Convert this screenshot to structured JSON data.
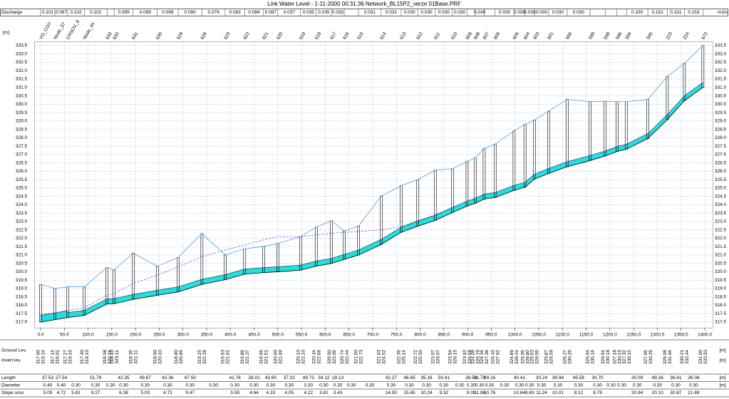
{
  "chart_data": {
    "type": "profile",
    "title": "Link Water Level - 1-11-2000 00:31:36 Network_BL15P2_verze 01Base.PRF",
    "y_label": "[m]",
    "x": [
      0,
      30,
      57,
      92,
      140,
      155,
      195,
      246,
      290,
      340,
      389,
      430,
      470,
      500,
      548,
      581,
      613,
      640,
      670,
      718,
      760,
      795,
      832,
      868,
      899,
      916,
      935,
      958,
      998,
      1021,
      1041,
      1071,
      1110,
      1158,
      1190,
      1215,
      1235,
      1280,
      1321,
      1357,
      1396
    ],
    "node_labels": [
      "VO_COV",
      "Node_37",
      "CRSOV_8",
      "Node_44",
      "633",
      "632",
      "631",
      "630",
      "629",
      "628",
      "623",
      "622",
      "621",
      "620",
      "619",
      "618",
      "617",
      "616",
      "615",
      "614",
      "613",
      "612",
      "611",
      "610",
      "609",
      "608",
      "607",
      "606",
      "605",
      "604",
      "603",
      "601",
      "600",
      "599",
      "598",
      "596",
      "594",
      "595",
      "223",
      "224",
      "672"
    ],
    "series": [
      {
        "name": "Ground Lev.",
        "unit": "[m]",
        "color": "#4a9fe0",
        "values": [
          319.24,
          319.01,
          319.1,
          319.1,
          320.26,
          320.11,
          321.11,
          320.33,
          320.85,
          322.28,
          321.01,
          321.37,
          321.51,
          321.69,
          322.1,
          322.66,
          323.05,
          322.44,
          322.73,
          324.52,
          325.14,
          325.5,
          326.07,
          326.15,
          326.58,
          326.79,
          327.36,
          327.62,
          328.41,
          328.8,
          329.05,
          329.59,
          330.29,
          330.16,
          330.18,
          330.15,
          330.15,
          330.29,
          331.66,
          332.44,
          333.5
        ],
        "value_labels": [
          "319.24",
          "319.01",
          "319.10",
          "319.10",
          "320.26",
          "320.11",
          "321.11",
          "320.33",
          "320.85",
          "322.28",
          "321.01",
          "321.37",
          "321.51",
          "321.69",
          "322.10",
          "322.66",
          "323.05",
          "322.44",
          "322.73",
          "324.52",
          "325.14",
          "325.50",
          "326.07",
          "326.15",
          "326.58",
          "326.79",
          "327.36",
          "327.62",
          "328.41",
          "328.80",
          "329.05",
          "329.59",
          "330.29",
          "330.16",
          "330.18",
          "330.15",
          "330.15",
          "330.29",
          "331.66",
          "332.44",
          "333.50"
        ]
      },
      {
        "name": "Invert lev.",
        "unit": "[m]",
        "color": "#000000",
        "values": [
          317.0,
          317.14,
          317.27,
          317.4,
          318.08,
          318.1,
          318.35,
          318.6,
          318.8,
          319.25,
          319.53,
          319.86,
          319.95,
          320.0,
          320.1,
          320.34,
          320.5,
          320.74,
          321.0,
          321.63,
          322.36,
          322.72,
          323.07,
          323.54,
          323.92,
          324.09,
          324.34,
          324.43,
          324.86,
          325.05,
          325.53,
          325.87,
          326.27,
          326.64,
          326.91,
          327.18,
          327.32,
          327.95,
          329.08,
          330.21,
          331.0
        ],
        "value_labels": [
          "317.00",
          "317.14",
          "317.27",
          "317.40",
          "318.08",
          "318.10",
          "318.35",
          "318.60",
          "318.80",
          "319.25",
          "319.53",
          "319.86",
          "319.95",
          "320.00",
          "320.10",
          "320.34",
          "320.50",
          "320.74",
          "321.00",
          "321.63",
          "322.36",
          "322.72",
          "323.07",
          "323.54",
          "323.92",
          "324.09",
          "324.34",
          "324.43",
          "324.86",
          "325.05",
          "325.53",
          "325.87",
          "326.27",
          "326.64",
          "326.91",
          "327.18",
          "327.32",
          "327.95",
          "329.08",
          "330.21",
          "331.00"
        ]
      }
    ],
    "water_level": {
      "color": "#7a3fc8",
      "fill": "#22e0e0",
      "values": [
        317.45,
        317.55,
        317.7,
        317.85,
        318.6,
        318.7,
        319.3,
        319.8,
        320.3,
        320.9,
        321.3,
        321.6,
        321.9,
        322.1,
        322.1,
        322.2,
        322.3,
        322.35,
        322.4,
        322.5,
        322.7,
        323.05,
        323.4,
        323.85,
        324.2,
        324.38,
        324.62,
        324.72,
        325.15,
        325.35,
        325.82,
        326.17,
        326.57,
        326.94,
        327.2,
        327.47,
        327.6,
        328.25,
        329.38,
        330.5,
        331.3
      ]
    },
    "rows": [
      {
        "label": "Discharge",
        "unit": "m3/s",
        "cells": [
          "0.101",
          "0.067",
          "0.102",
          "0.102",
          null,
          "0.099",
          "0.099",
          "0.098",
          "0.090",
          "0.079",
          "0.083",
          "0.084",
          "0.087",
          "0.037",
          "0.035",
          "0.035",
          "0.032",
          null,
          "0.031",
          "0.031",
          "0.030",
          "0.030",
          "0.030",
          "0.030",
          null,
          "0.030",
          null,
          "0.030",
          "0.030",
          "0.030",
          "0.030",
          "0.030",
          "0.030",
          null,
          null,
          null,
          "0.150",
          "0.151",
          "0.151",
          "0.153"
        ]
      },
      {
        "label": "Diameter",
        "unit": "[m]",
        "cells": [
          "0.40",
          "0.40",
          "0.30",
          "0.30",
          "0.30",
          "0.30",
          "0.30",
          "0.30",
          "0.30",
          "0.30",
          "0.30",
          "0.30",
          "0.30",
          "0.30",
          "0.30",
          "0.30",
          "0.30",
          "0.30",
          "0.30",
          "0.30",
          "0.30",
          "0.30",
          "0.30",
          "0.30",
          "0.30",
          "0.30",
          "0.30",
          "0.30",
          "0.30",
          "0.30",
          "0.30",
          "0.30",
          "0.30",
          "0.30",
          "0.30",
          "0.30",
          "0.30",
          "0.30",
          "0.30",
          "0.30"
        ]
      },
      {
        "label": "Length",
        "unit": "[m]",
        "cells": [
          "37.53",
          "27.54",
          null,
          "51.78",
          null,
          "42.35",
          "49.67",
          "42.36",
          "47.50",
          null,
          "41.76",
          "28.01",
          "43.90",
          "37.02",
          "49.73",
          "34.12",
          "29.13",
          null,
          null,
          "42.27",
          "46.65",
          "35.16",
          "50.41",
          null,
          "38.50",
          "31.78",
          "24.16",
          null,
          "40.41",
          null,
          "30.24",
          "39.94",
          "45.58",
          "30.70",
          null,
          null,
          "30.09",
          "49.26",
          "36.61",
          "36.08"
        ]
      },
      {
        "label": "Slope o/oo",
        "unit": null,
        "cells": [
          "5.09",
          "4.72",
          "5.81",
          "9.27",
          null,
          "6.38",
          "5.03",
          "4.72",
          "9.47",
          null,
          "3.59",
          "4.64",
          "4.33",
          "4.05",
          "4.22",
          "3.81",
          "3.43",
          null,
          null,
          "14.90",
          "15.65",
          "10.24",
          "9.32",
          null,
          "9.09",
          "11.96",
          "10.76",
          null,
          "10.64",
          "8.83",
          "11.24",
          "10.01",
          "8.12",
          "8.79",
          null,
          null,
          "20.94",
          "20.10",
          "30.87",
          "21.69"
        ]
      }
    ],
    "xlim": [
      0,
      1400
    ],
    "xticks": [
      {
        "value": 0,
        "label": "0.0"
      },
      {
        "value": 50,
        "label": "50.0"
      },
      {
        "value": 100,
        "label": "100.0"
      },
      {
        "value": 150,
        "label": "150.0"
      },
      {
        "value": 200,
        "label": "200.0"
      },
      {
        "value": 250,
        "label": "250.0"
      },
      {
        "value": 300,
        "label": "300.0"
      },
      {
        "value": 350,
        "label": "350.0"
      },
      {
        "value": 400,
        "label": "400.0"
      },
      {
        "value": 450,
        "label": "450.0"
      },
      {
        "value": 500,
        "label": "500.0"
      },
      {
        "value": 550,
        "label": "550.0"
      },
      {
        "value": 600,
        "label": "600.0"
      },
      {
        "value": 650,
        "label": "650.0"
      },
      {
        "value": 700,
        "label": "700.0"
      },
      {
        "value": 750,
        "label": "750.0"
      },
      {
        "value": 800,
        "label": "800.0"
      },
      {
        "value": 850,
        "label": "850.0"
      },
      {
        "value": 900,
        "label": "900.0"
      },
      {
        "value": 950,
        "label": "950.0"
      },
      {
        "value": 1000,
        "label": "1000.0"
      },
      {
        "value": 1050,
        "label": "1050.0"
      },
      {
        "value": 1100,
        "label": "1100.0"
      },
      {
        "value": 1150,
        "label": "1150.0"
      },
      {
        "value": 1200,
        "label": "1200.0"
      },
      {
        "value": 1250,
        "label": "1250.0"
      },
      {
        "value": 1300,
        "label": "1300.0"
      },
      {
        "value": 1350,
        "label": "1350.0"
      },
      {
        "value": 1400,
        "label": "1400.0"
      }
    ],
    "ylim": [
      317,
      333.5
    ],
    "yticks": [
      {
        "value": 317,
        "label": "317.0"
      },
      317.5,
      {
        "value": 318,
        "label": "318.0"
      },
      318.5,
      {
        "value": 319,
        "label": "319.0"
      },
      319.5,
      {
        "value": 320,
        "label": "320.0"
      },
      320.5,
      {
        "value": 321,
        "label": "321.0"
      },
      321.5,
      {
        "value": 322,
        "label": "322.0"
      },
      322.5,
      {
        "value": 323,
        "label": "323.0"
      },
      323.5,
      {
        "value": 324,
        "label": "324.0"
      },
      324.5,
      {
        "value": 325,
        "label": "325.0"
      },
      325.5,
      {
        "value": 326,
        "label": "326.0"
      },
      326.5,
      {
        "value": 327,
        "label": "327.0"
      },
      327.5,
      {
        "value": 328,
        "label": "328.0"
      },
      328.5,
      {
        "value": 329,
        "label": "329.0"
      },
      329.5,
      {
        "value": 330,
        "label": "330.0"
      },
      330.5,
      {
        "value": 331,
        "label": "331.0"
      },
      331.5,
      {
        "value": 332,
        "label": "332.0"
      },
      332.5,
      {
        "value": 333,
        "label": "333.0"
      },
      333.5
    ],
    "grid": true
  }
}
